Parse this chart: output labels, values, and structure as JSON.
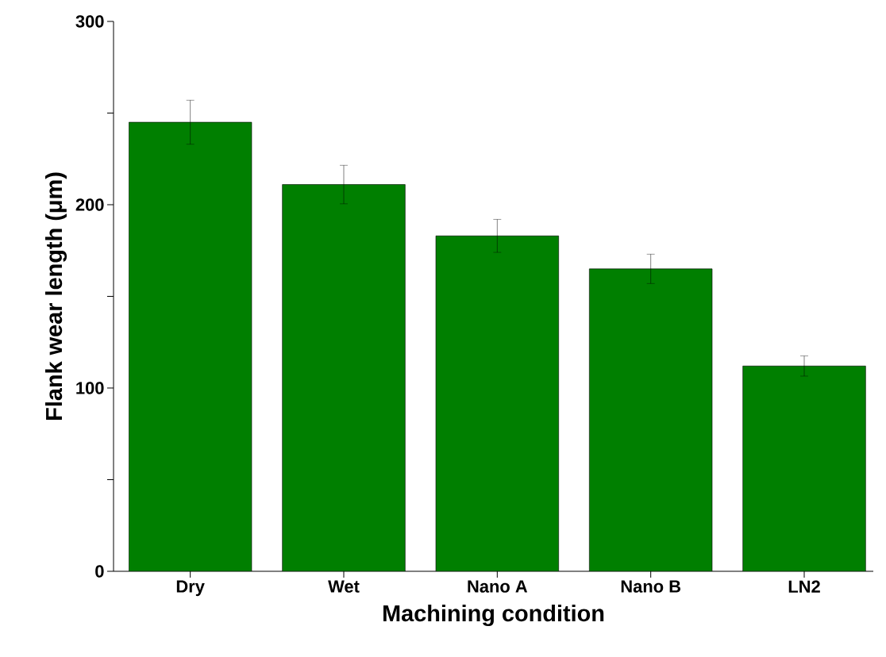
{
  "chart_data": {
    "type": "bar",
    "xlabel": "Machining condition",
    "ylabel": "Flank wear length (μm)",
    "categories": [
      "Dry",
      "Wet",
      "Nano A",
      "Nano B",
      "LN2"
    ],
    "values": [
      245,
      211,
      183,
      165,
      112
    ],
    "errors": [
      12,
      10.5,
      9,
      8,
      5.5
    ],
    "color": "#007f00",
    "ylim": [
      0,
      300
    ],
    "yticks": [
      0,
      {
        "value": 50,
        "label": null
      },
      100,
      {
        "value": 150,
        "label": null
      },
      200,
      {
        "value": 250,
        "label": null
      },
      300
    ],
    "grid": false
  }
}
